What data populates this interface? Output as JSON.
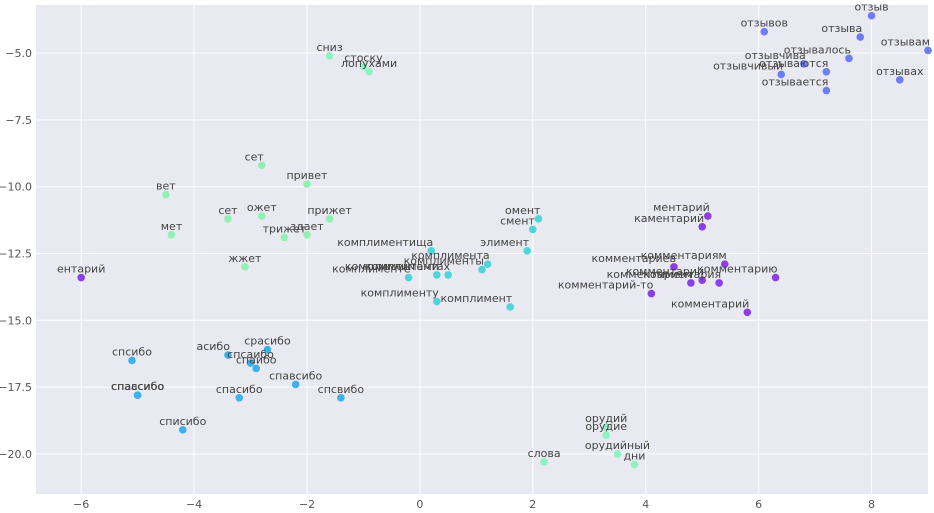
{
  "chart_data": {
    "type": "scatter",
    "title": "",
    "xlabel": "",
    "ylabel": "",
    "xlim": [
      -6.8,
      9.0
    ],
    "ylim": [
      -21.5,
      -3.2
    ],
    "grid": true,
    "xticks": [
      -6,
      -4,
      -2,
      0,
      2,
      4,
      6,
      8
    ],
    "yticks": [
      -5.0,
      -7.5,
      -10.0,
      -12.5,
      -15.0,
      -17.5,
      -20.0
    ],
    "xtick_labels": [
      "−6",
      "−4",
      "−2",
      "0",
      "2",
      "4",
      "6",
      "8"
    ],
    "ytick_labels": [
      "−5.0",
      "−7.5",
      "−10.0",
      "−12.5",
      "−15.0",
      "−17.5",
      "−20.0"
    ],
    "colors": {
      "background": "#e9e9f1",
      "grid": "#ffffff",
      "otzyv": "#6c7ef0",
      "kommentariy": "#8b3fe6",
      "kompliment": "#4fd4d9",
      "spasibo": "#3fb1ea",
      "privet": "#93f0b3",
      "orudie": "#8ff2c4",
      "snizu": "#8ff2c4"
    },
    "points": [
      {
        "label": "отзыв",
        "x": 8.0,
        "y": -3.6,
        "group": "otzyv",
        "anchor": "middle"
      },
      {
        "label": "отзывов",
        "x": 6.1,
        "y": -4.2,
        "group": "otzyv",
        "anchor": "middle"
      },
      {
        "label": "отзыва",
        "x": 7.8,
        "y": -4.4,
        "group": "otzyv",
        "anchor": "end"
      },
      {
        "label": "отзывам",
        "x": 9.0,
        "y": -4.9,
        "group": "otzyv",
        "anchor": "end"
      },
      {
        "label": "отзывалось",
        "x": 7.6,
        "y": -5.2,
        "group": "otzyv",
        "anchor": "end"
      },
      {
        "label": "отзывчива",
        "x": 6.8,
        "y": -5.4,
        "group": "otzyv",
        "anchor": "end"
      },
      {
        "label": "отзываются",
        "x": 7.2,
        "y": -5.7,
        "group": "otzyv",
        "anchor": "end"
      },
      {
        "label": "отзывчивый",
        "x": 6.4,
        "y": -5.8,
        "group": "otzyv",
        "anchor": "end"
      },
      {
        "label": "отзывах",
        "x": 8.5,
        "y": -6.0,
        "group": "otzyv",
        "anchor": "middle"
      },
      {
        "label": "отзывается",
        "x": 7.2,
        "y": -6.4,
        "group": "otzyv",
        "anchor": "end"
      },
      {
        "label": "ментарий",
        "x": 5.1,
        "y": -11.1,
        "group": "kommentariy",
        "anchor": "end"
      },
      {
        "label": "каментарий",
        "x": 5.0,
        "y": -11.5,
        "group": "kommentariy",
        "anchor": "end"
      },
      {
        "label": "комментариев",
        "x": 4.5,
        "y": -13.0,
        "group": "kommentariy",
        "anchor": "end"
      },
      {
        "label": "комментариям",
        "x": 5.4,
        "y": -12.9,
        "group": "kommentariy",
        "anchor": "end"
      },
      {
        "label": "комментарию",
        "x": 6.3,
        "y": -13.4,
        "group": "kommentariy",
        "anchor": "end"
      },
      {
        "label": "комментарии",
        "x": 5.0,
        "y": -13.5,
        "group": "kommentariy",
        "anchor": "end"
      },
      {
        "label": "комментарием",
        "x": 4.8,
        "y": -13.6,
        "group": "kommentariy",
        "anchor": "end"
      },
      {
        "label": "комментария",
        "x": 5.3,
        "y": -13.6,
        "group": "kommentariy",
        "anchor": "end"
      },
      {
        "label": "комментарий-то",
        "x": 4.1,
        "y": -14.0,
        "group": "kommentariy",
        "anchor": "end"
      },
      {
        "label": "комментарий",
        "x": 5.8,
        "y": -14.7,
        "group": "kommentariy",
        "anchor": "end"
      },
      {
        "label": "ентарий",
        "x": -6.0,
        "y": -13.4,
        "group": "kommentariy",
        "anchor": "middle"
      },
      {
        "label": "омент",
        "x": 2.1,
        "y": -11.2,
        "group": "kompliment",
        "anchor": "end"
      },
      {
        "label": "смент",
        "x": 2.0,
        "y": -11.6,
        "group": "kompliment",
        "anchor": "end"
      },
      {
        "label": "элимент",
        "x": 1.9,
        "y": -12.4,
        "group": "kompliment",
        "anchor": "end"
      },
      {
        "label": "комплиментища",
        "x": 0.2,
        "y": -12.4,
        "group": "kompliment",
        "anchor": "end"
      },
      {
        "label": "комплимента",
        "x": 1.2,
        "y": -12.9,
        "group": "kompliment",
        "anchor": "end"
      },
      {
        "label": "комплименты",
        "x": 1.1,
        "y": -13.1,
        "group": "kompliment",
        "anchor": "end"
      },
      {
        "label": "комплиментами",
        "x": 0.3,
        "y": -13.3,
        "group": "kompliment",
        "anchor": "end"
      },
      {
        "label": "комплиментах",
        "x": 0.5,
        "y": -13.3,
        "group": "kompliment",
        "anchor": "end"
      },
      {
        "label": "комплименте",
        "x": -0.2,
        "y": -13.4,
        "group": "kompliment",
        "anchor": "end"
      },
      {
        "label": "комплименту",
        "x": 0.3,
        "y": -14.3,
        "group": "kompliment",
        "anchor": "end"
      },
      {
        "label": "комплимент",
        "x": 1.6,
        "y": -14.5,
        "group": "kompliment",
        "anchor": "end"
      },
      {
        "label": "спсибо",
        "x": -5.1,
        "y": -16.5,
        "group": "spasibo",
        "anchor": "middle"
      },
      {
        "label": "асибо",
        "x": -3.4,
        "y": -16.3,
        "group": "spasibo",
        "anchor": "end"
      },
      {
        "label": "срасибо",
        "x": -2.7,
        "y": -16.1,
        "group": "spasibo",
        "anchor": "middle"
      },
      {
        "label": "спсаибо",
        "x": -3.0,
        "y": -16.6,
        "group": "spasibo",
        "anchor": "middle"
      },
      {
        "label": "спаибо",
        "x": -2.9,
        "y": -16.8,
        "group": "spasibo",
        "anchor": "middle"
      },
      {
        "label": "спавсибо",
        "x": -2.2,
        "y": -17.4,
        "group": "spasibo",
        "anchor": "middle"
      },
      {
        "label": "спсвибо",
        "x": -1.4,
        "y": -17.9,
        "group": "spasibo",
        "anchor": "middle"
      },
      {
        "label": "спасибо",
        "x": -3.2,
        "y": -17.9,
        "group": "spasibo",
        "anchor": "middle"
      },
      {
        "label": "спассибо",
        "x": -5.0,
        "y": -17.8,
        "group": "spasibo",
        "anchor": "middle"
      },
      {
        "label": "спаасибо",
        "x": -5.0,
        "y": -17.8,
        "group": "spasibo",
        "anchor": "middle"
      },
      {
        "label": "списибо",
        "x": -4.2,
        "y": -19.1,
        "group": "spasibo",
        "anchor": "middle"
      },
      {
        "label": "сет",
        "x": -2.8,
        "y": -9.2,
        "group": "privet",
        "anchor": "end"
      },
      {
        "label": "привет",
        "x": -2.0,
        "y": -9.9,
        "group": "privet",
        "anchor": "middle"
      },
      {
        "label": "вет",
        "x": -4.5,
        "y": -10.3,
        "group": "privet",
        "anchor": "middle"
      },
      {
        "label": "сет",
        "x": -3.4,
        "y": -11.2,
        "group": "privet",
        "anchor": "middle"
      },
      {
        "label": "ожет",
        "x": -2.8,
        "y": -11.1,
        "group": "privet",
        "anchor": "middle"
      },
      {
        "label": "прижет",
        "x": -1.6,
        "y": -11.2,
        "group": "privet",
        "anchor": "middle"
      },
      {
        "label": "мет",
        "x": -4.4,
        "y": -11.8,
        "group": "privet",
        "anchor": "middle"
      },
      {
        "label": "трижет",
        "x": -2.4,
        "y": -11.9,
        "group": "privet",
        "anchor": "middle"
      },
      {
        "label": "здает",
        "x": -2.0,
        "y": -11.8,
        "group": "privet",
        "anchor": "middle"
      },
      {
        "label": "жжет",
        "x": -3.1,
        "y": -13.0,
        "group": "privet",
        "anchor": "middle"
      },
      {
        "label": "сниз",
        "x": -1.6,
        "y": -5.1,
        "group": "snizu",
        "anchor": "middle"
      },
      {
        "label": "стоску",
        "x": -1.0,
        "y": -5.5,
        "group": "snizu",
        "anchor": "middle"
      },
      {
        "label": "лопухами",
        "x": -0.9,
        "y": -5.7,
        "group": "snizu",
        "anchor": "middle"
      },
      {
        "label": "орудий",
        "x": 3.3,
        "y": -19.0,
        "group": "orudie",
        "anchor": "middle"
      },
      {
        "label": "орудие",
        "x": 3.3,
        "y": -19.3,
        "group": "orudie",
        "anchor": "middle"
      },
      {
        "label": "орудийный",
        "x": 3.5,
        "y": -20.0,
        "group": "orudie",
        "anchor": "middle"
      },
      {
        "label": "дни",
        "x": 3.8,
        "y": -20.4,
        "group": "orudie",
        "anchor": "middle"
      },
      {
        "label": "слова",
        "x": 2.2,
        "y": -20.3,
        "group": "orudie",
        "anchor": "middle"
      }
    ]
  }
}
